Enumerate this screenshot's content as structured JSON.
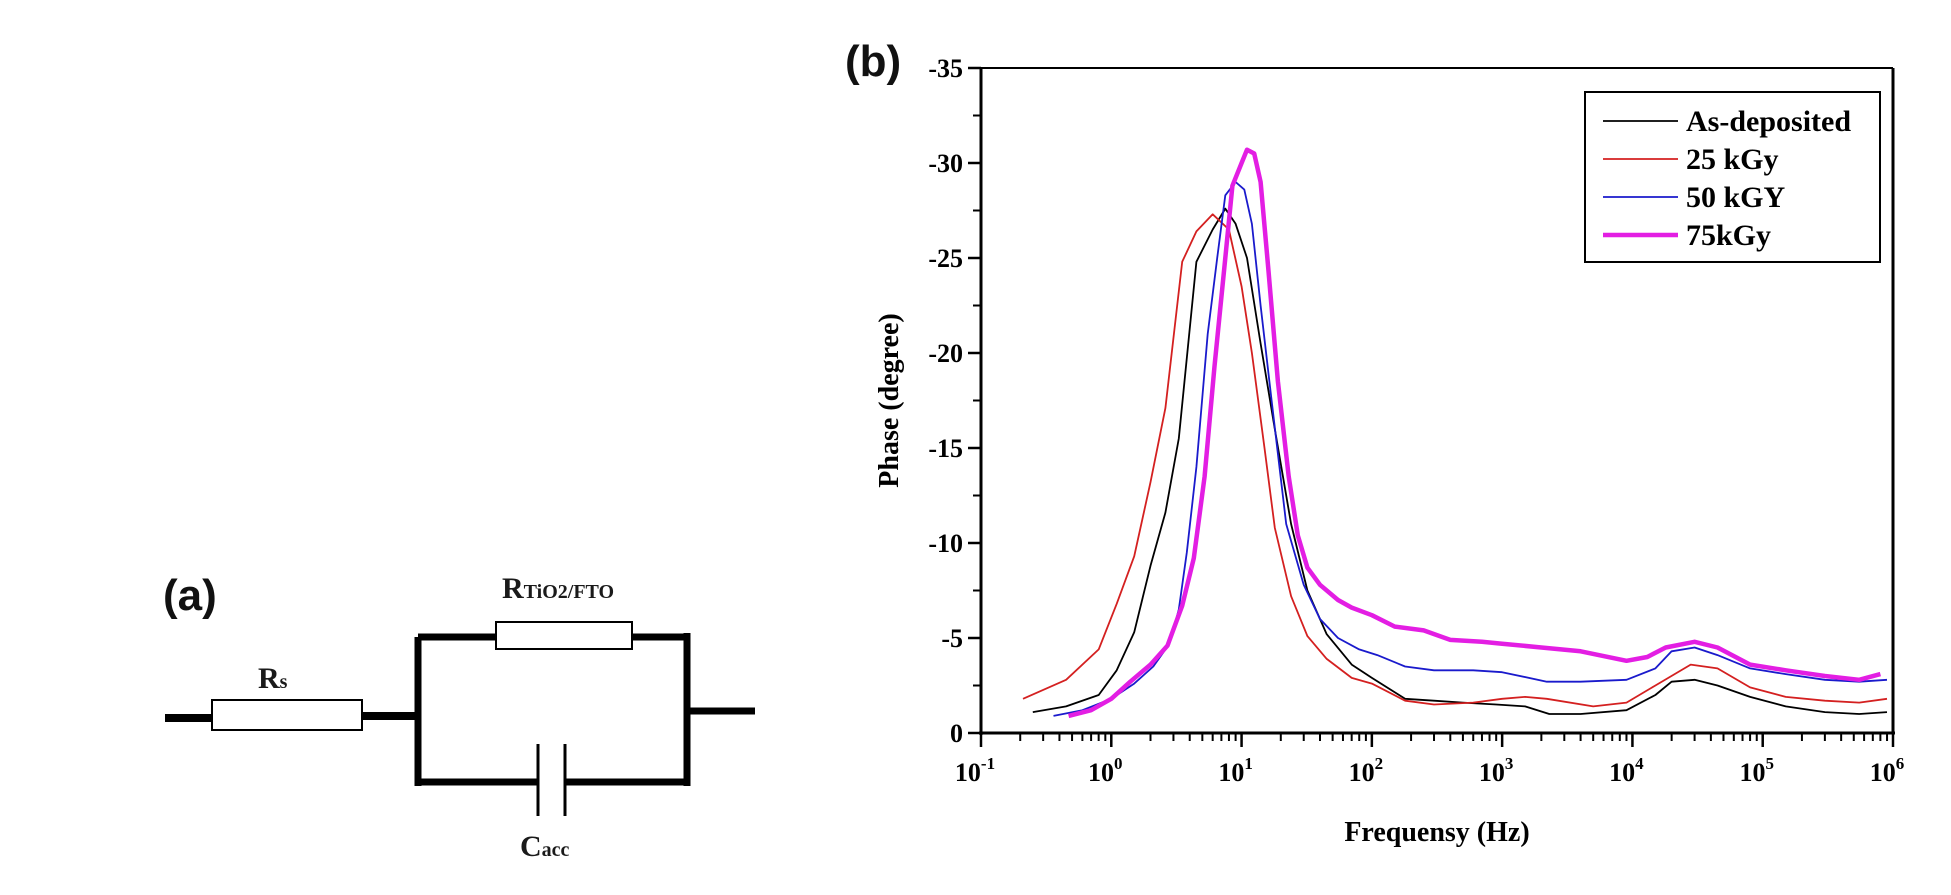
{
  "panel_a": {
    "label": "(a)",
    "components": [
      {
        "id": "Rs",
        "symbol": "R",
        "subscript": "s",
        "type": "resistor",
        "connection": "series"
      },
      {
        "id": "RTiO2FTO",
        "symbol": "R",
        "subscript": "TiO2/FTO",
        "type": "resistor",
        "connection": "parallel"
      },
      {
        "id": "Cacc",
        "symbol": "C",
        "subscript": "acc",
        "type": "capacitor",
        "connection": "parallel"
      }
    ]
  },
  "panel_b": {
    "label": "(b)"
  },
  "chart_data": {
    "type": "line",
    "title": "",
    "xlabel": "Frequensy (Hz)",
    "ylabel": "Phase (degree)",
    "xscale": "log",
    "xlim": [
      0.1,
      1000000
    ],
    "ylim": [
      0,
      -35
    ],
    "y_inverted": true,
    "xticks": [
      {
        "value": 0.1,
        "base": "10",
        "exp": "-1"
      },
      {
        "value": 1,
        "base": "10",
        "exp": "0"
      },
      {
        "value": 10,
        "base": "10",
        "exp": "1"
      },
      {
        "value": 100,
        "base": "10",
        "exp": "2"
      },
      {
        "value": 1000,
        "base": "10",
        "exp": "3"
      },
      {
        "value": 10000,
        "base": "10",
        "exp": "4"
      },
      {
        "value": 100000,
        "base": "10",
        "exp": "5"
      },
      {
        "value": 1000000,
        "base": "10",
        "exp": "6"
      }
    ],
    "yticks": [
      {
        "value": 0,
        "label": "0"
      },
      {
        "value": -5,
        "label": "-5"
      },
      {
        "value": -10,
        "label": "-10"
      },
      {
        "value": -15,
        "label": "-15"
      },
      {
        "value": -20,
        "label": "-20"
      },
      {
        "value": -25,
        "label": "-25"
      },
      {
        "value": -30,
        "label": "-30"
      },
      {
        "value": -35,
        "label": "-35"
      }
    ],
    "grid": false,
    "legend_position": "top-right",
    "series": [
      {
        "name": "As-deposited",
        "color": "#000000",
        "width": "thin",
        "x": [
          0.25,
          0.45,
          0.8,
          1.1,
          1.5,
          2.0,
          2.6,
          3.3,
          4.5,
          6.0,
          7.5,
          9.0,
          11,
          14,
          18,
          24,
          32,
          45,
          70,
          100,
          180,
          300,
          500,
          900,
          1500,
          2300,
          4000,
          9000,
          15000,
          20000,
          30000,
          45000,
          80000,
          150000,
          300000,
          550000,
          900000
        ],
        "y": [
          -1.1,
          -1.4,
          -2.0,
          -3.3,
          -5.3,
          -8.8,
          -11.6,
          -15.5,
          -24.8,
          -26.5,
          -27.6,
          -26.8,
          -25.0,
          -20.5,
          -16.0,
          -11.0,
          -7.5,
          -5.2,
          -3.6,
          -2.9,
          -1.8,
          -1.7,
          -1.6,
          -1.5,
          -1.4,
          -1.0,
          -1.0,
          -1.2,
          -2.0,
          -2.7,
          -2.8,
          -2.5,
          -1.9,
          -1.4,
          -1.1,
          -1.0,
          -1.1
        ]
      },
      {
        "name": "25 kGy",
        "color": "#d42020",
        "width": "thin",
        "x": [
          0.21,
          0.45,
          0.8,
          1.1,
          1.5,
          2.0,
          2.6,
          3.5,
          4.5,
          6.0,
          8.0,
          10,
          12,
          15,
          18,
          24,
          32,
          45,
          70,
          100,
          180,
          300,
          600,
          1000,
          1500,
          2200,
          5000,
          9000,
          15000,
          28000,
          45000,
          80000,
          150000,
          300000,
          550000,
          900000
        ],
        "y": [
          -1.8,
          -2.8,
          -4.4,
          -6.8,
          -9.3,
          -13.2,
          -17.1,
          -24.8,
          -26.4,
          -27.3,
          -26.5,
          -23.5,
          -20.0,
          -15.0,
          -10.8,
          -7.2,
          -5.1,
          -3.9,
          -2.9,
          -2.6,
          -1.7,
          -1.5,
          -1.6,
          -1.8,
          -1.9,
          -1.8,
          -1.4,
          -1.6,
          -2.5,
          -3.6,
          -3.4,
          -2.4,
          -1.9,
          -1.7,
          -1.6,
          -1.8
        ]
      },
      {
        "name": "50 kGY",
        "color": "#1a1acc",
        "width": "thin",
        "x": [
          0.36,
          0.6,
          1.0,
          1.5,
          2.1,
          2.8,
          3.3,
          3.8,
          4.5,
          5.5,
          6.5,
          7.5,
          9.0,
          10.5,
          12,
          14,
          17,
          22,
          30,
          40,
          55,
          80,
          110,
          180,
          300,
          600,
          1000,
          2200,
          4000,
          9000,
          15000,
          20000,
          30000,
          45000,
          80000,
          150000,
          300000,
          550000,
          900000
        ],
        "y": [
          -0.9,
          -1.2,
          -1.8,
          -2.6,
          -3.5,
          -4.7,
          -6.5,
          -9.5,
          -14.0,
          -21.0,
          -25.0,
          -28.3,
          -29.0,
          -28.6,
          -26.8,
          -22.5,
          -17.5,
          -11.0,
          -7.8,
          -6.0,
          -5.0,
          -4.4,
          -4.1,
          -3.5,
          -3.3,
          -3.3,
          -3.2,
          -2.7,
          -2.7,
          -2.8,
          -3.4,
          -4.3,
          -4.5,
          -4.1,
          -3.4,
          -3.1,
          -2.8,
          -2.7,
          -2.8
        ]
      },
      {
        "name": "75kGy",
        "color": "#e31ee3",
        "width": "thick",
        "x": [
          0.47,
          0.7,
          1.0,
          1.4,
          2.0,
          2.7,
          3.5,
          4.3,
          5.2,
          6.2,
          7.5,
          8.5,
          10,
          11,
          12.5,
          14,
          16,
          19,
          23,
          27,
          32,
          40,
          55,
          70,
          100,
          150,
          250,
          400,
          700,
          1000,
          2000,
          4000,
          9000,
          13000,
          18000,
          30000,
          45000,
          80000,
          150000,
          300000,
          550000,
          800000
        ],
        "y": [
          -0.9,
          -1.2,
          -1.8,
          -2.7,
          -3.6,
          -4.6,
          -6.7,
          -9.2,
          -13.5,
          -19.3,
          -25.0,
          -28.8,
          -30.0,
          -30.7,
          -30.5,
          -29.0,
          -24.5,
          -18.5,
          -13.5,
          -10.4,
          -8.7,
          -7.8,
          -7.0,
          -6.6,
          -6.2,
          -5.6,
          -5.4,
          -4.9,
          -4.8,
          -4.7,
          -4.5,
          -4.3,
          -3.8,
          -4.0,
          -4.5,
          -4.8,
          -4.5,
          -3.6,
          -3.3,
          -3.0,
          -2.8,
          -3.1
        ]
      }
    ]
  }
}
